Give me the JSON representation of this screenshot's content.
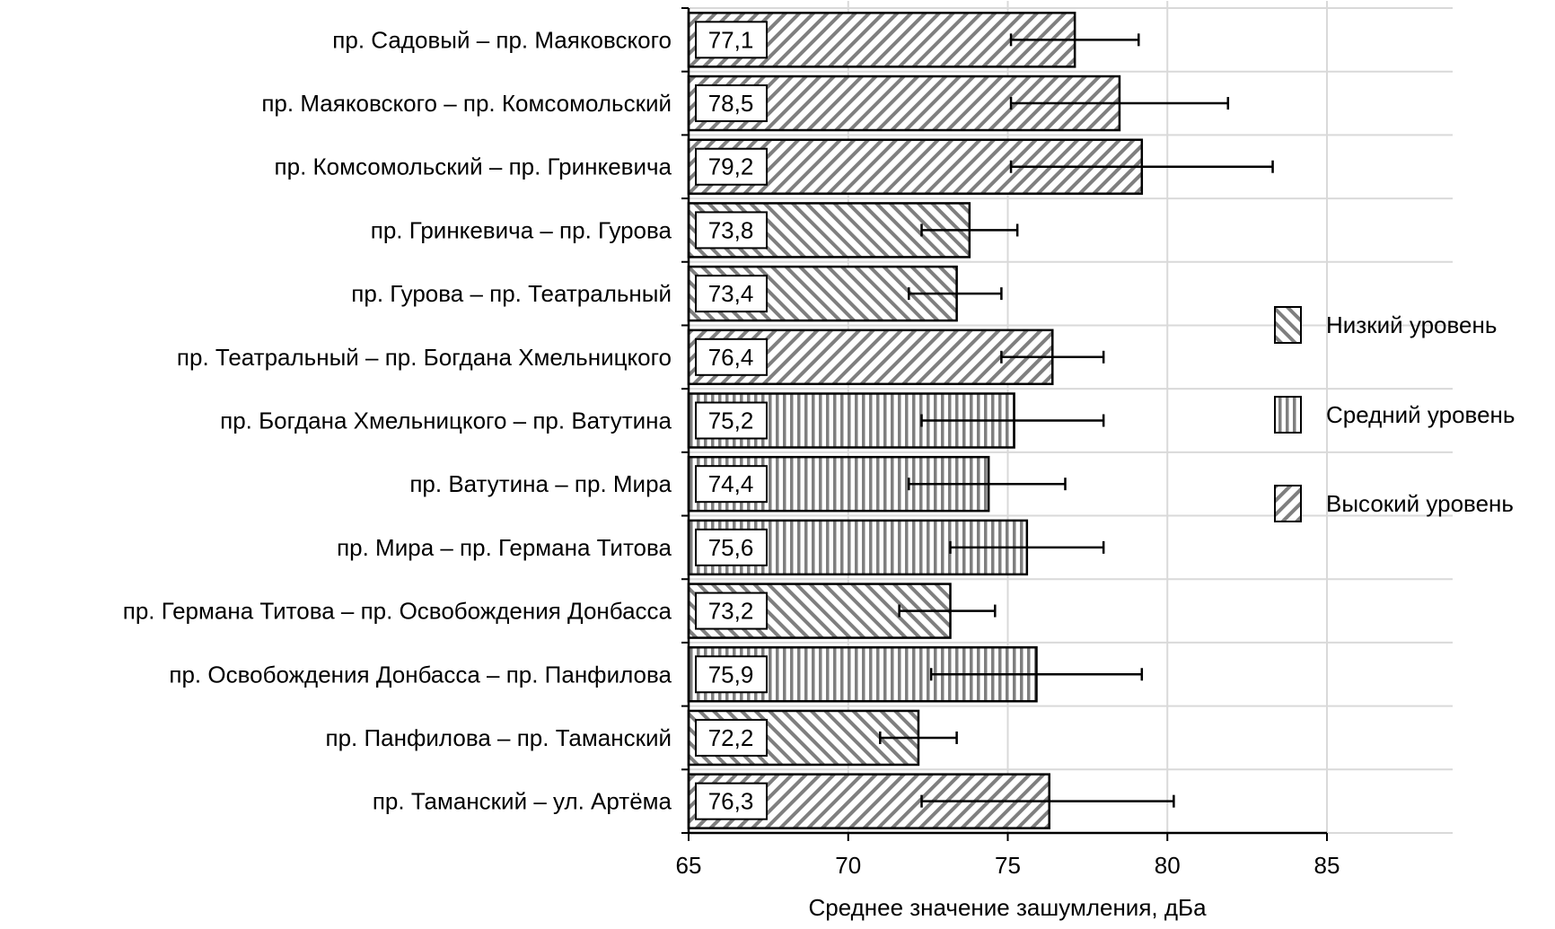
{
  "chart_data": {
    "type": "bar",
    "orientation": "horizontal",
    "xlabel": "Среднее значение зашумления, дБа",
    "xlim": [
      65,
      85
    ],
    "xticks": [
      65,
      70,
      75,
      80,
      85
    ],
    "grid": true,
    "legend_position": "right",
    "legend": [
      {
        "key": "low",
        "label": "Низкий уровень",
        "pattern": "backslash"
      },
      {
        "key": "medium",
        "label": "Средний уровень",
        "pattern": "vertical"
      },
      {
        "key": "high",
        "label": "Высокий уровень",
        "pattern": "slash"
      }
    ],
    "categories": [
      "пр. Садовый – пр. Маяковского",
      "пр. Маяковского – пр. Комсомольский",
      "пр. Комсомольский – пр. Гринкевича",
      "пр. Гринкевича – пр. Гурова",
      "пр. Гурова – пр. Театральный",
      "пр. Театральный – пр. Богдана Хмельницкого",
      "пр. Богдана Хмельницкого – пр. Ватутина",
      "пр. Ватутина – пр. Мира",
      "пр. Мира – пр. Германа Титова",
      "пр. Германа Титова – пр. Освобождения Донбасса",
      "пр. Освобождения Донбасса – пр. Панфилова",
      "пр. Панфилова – пр. Таманский",
      "пр. Таманский – ул. Артёма"
    ],
    "values": [
      77.1,
      78.5,
      79.2,
      73.8,
      73.4,
      76.4,
      75.2,
      74.4,
      75.6,
      73.2,
      75.9,
      72.2,
      76.3
    ],
    "value_labels": [
      "77,1",
      "78,5",
      "79,2",
      "73,8",
      "73,4",
      "76,4",
      "75,2",
      "74,4",
      "75,6",
      "73,2",
      "75,9",
      "72,2",
      "76,3"
    ],
    "levels": [
      "high",
      "high",
      "high",
      "low",
      "low",
      "high",
      "medium",
      "medium",
      "medium",
      "low",
      "medium",
      "low",
      "high"
    ],
    "error_low": [
      75.1,
      75.1,
      75.1,
      72.3,
      71.9,
      74.8,
      72.3,
      71.9,
      73.2,
      71.6,
      72.6,
      71.0,
      72.3
    ],
    "error_high": [
      79.1,
      81.9,
      83.3,
      75.3,
      74.8,
      78.0,
      78.0,
      76.8,
      78.0,
      74.6,
      79.2,
      73.4,
      80.2
    ]
  },
  "colors": {
    "stripe": "#7f7f7f",
    "grid": "#d9d9d9",
    "axis": "#000000"
  }
}
